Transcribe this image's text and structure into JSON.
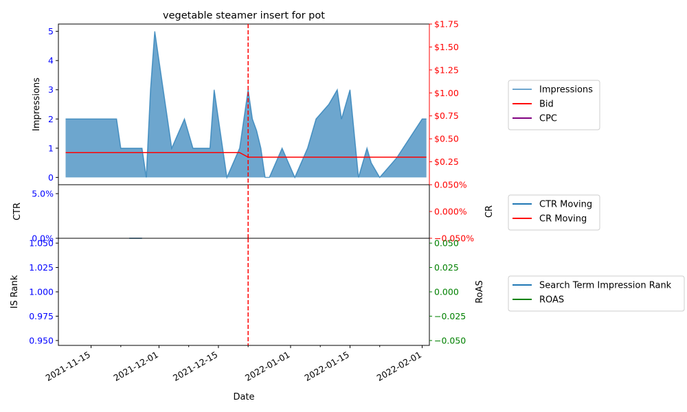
{
  "chart_data": {
    "type": "area",
    "title": "vegetable steamer insert for pot",
    "xlabel": "Date",
    "x_ticks": [
      "2021-11-15",
      "2021-12-01",
      "2021-12-15",
      "2022-01-01",
      "2022-01-15",
      "2022-02-01"
    ],
    "event_line": {
      "date": "2021-12-22",
      "color": "#ff0000",
      "style": "dashed"
    },
    "panels": [
      {
        "ylabel_left": "Impressions",
        "ylim_left": [
          -0.25,
          5.25
        ],
        "yticks_left": [
          "0",
          "1",
          "2",
          "3",
          "4",
          "5"
        ],
        "ylim_right": [
          0.0,
          1.75
        ],
        "yticks_right": [
          "$0.25",
          "$0.50",
          "$0.75",
          "$1.00",
          "$1.25",
          "$1.50",
          "$1.75"
        ],
        "right_axis_color": "#ff0000",
        "series": [
          {
            "name": "Impressions",
            "kind": "area",
            "axis": "left",
            "color": "#1f77b4",
            "points": [
              [
                "2021-11-09",
                2
              ],
              [
                "2021-11-15",
                2
              ],
              [
                "2021-11-21",
                2
              ],
              [
                "2021-11-22",
                1
              ],
              [
                "2021-11-24",
                1
              ],
              [
                "2021-11-27",
                1
              ],
              [
                "2021-11-28",
                0
              ],
              [
                "2021-11-29",
                3
              ],
              [
                "2021-11-30",
                5
              ],
              [
                "2021-12-03",
                2
              ],
              [
                "2021-12-04",
                1
              ],
              [
                "2021-12-07",
                2
              ],
              [
                "2021-12-09",
                1
              ],
              [
                "2021-12-11",
                1
              ],
              [
                "2021-12-13",
                1
              ],
              [
                "2021-12-14",
                3
              ],
              [
                "2021-12-16",
                1
              ],
              [
                "2021-12-17",
                0
              ],
              [
                "2021-12-20",
                1
              ],
              [
                "2021-12-22",
                3
              ],
              [
                "2021-12-23",
                2
              ],
              [
                "2021-12-24",
                1.6
              ],
              [
                "2021-12-25",
                1
              ],
              [
                "2021-12-26",
                0
              ],
              [
                "2021-12-27",
                0
              ],
              [
                "2021-12-30",
                1
              ],
              [
                "2022-01-02",
                0
              ],
              [
                "2022-01-05",
                1
              ],
              [
                "2022-01-07",
                2
              ],
              [
                "2022-01-10",
                2.5
              ],
              [
                "2022-01-12",
                3
              ],
              [
                "2022-01-13",
                2
              ],
              [
                "2022-01-15",
                3
              ],
              [
                "2022-01-17",
                0
              ],
              [
                "2022-01-19",
                1
              ],
              [
                "2022-01-20",
                0.5
              ],
              [
                "2022-01-22",
                0
              ],
              [
                "2022-01-26",
                0.67
              ],
              [
                "2022-02-01",
                2
              ],
              [
                "2022-02-02",
                2
              ]
            ]
          },
          {
            "name": "Bid",
            "kind": "line",
            "axis": "right",
            "color": "#ff0000",
            "points": [
              [
                "2021-11-09",
                0.35
              ],
              [
                "2021-12-20",
                0.35
              ],
              [
                "2021-12-22",
                0.3
              ],
              [
                "2022-02-02",
                0.3
              ]
            ]
          },
          {
            "name": "CPC",
            "kind": "line",
            "axis": "right",
            "color": "#800080",
            "points": []
          }
        ]
      },
      {
        "ylabel_left": "CTR",
        "ylabel_right": "CR",
        "ylim_left": [
          0.0,
          0.06
        ],
        "yticks_left": [
          "0.0%",
          "5.0%"
        ],
        "ylim_right": [
          -0.05,
          0.05
        ],
        "yticks_right": [
          "0.050%",
          "0.000%",
          "−0.050%"
        ],
        "right_axis_color": "#ff0000",
        "series": [
          {
            "name": "CTR Moving",
            "kind": "line",
            "axis": "left",
            "color": "#1f77b4",
            "points": [
              [
                "2021-11-24",
                0
              ],
              [
                "2021-11-27",
                0
              ]
            ]
          },
          {
            "name": "CR Moving",
            "kind": "line",
            "axis": "right",
            "color": "#ff0000",
            "points": []
          }
        ]
      },
      {
        "ylabel_left": "IS Rank",
        "ylabel_right": "RoAS",
        "ylim_left": [
          0.945,
          1.055
        ],
        "yticks_left": [
          "0.950",
          "0.975",
          "1.000",
          "1.025",
          "1.050"
        ],
        "ylim_right": [
          -0.055,
          0.055
        ],
        "yticks_right": [
          "0.050",
          "0.025",
          "0.000",
          "−0.025",
          "−0.050"
        ],
        "right_axis_color": "#008000",
        "series": [
          {
            "name": "Search Term Impression Rank",
            "kind": "line",
            "axis": "left",
            "color": "#1f77b4",
            "points": []
          },
          {
            "name": "ROAS",
            "kind": "line",
            "axis": "right",
            "color": "#008000",
            "points": []
          }
        ]
      }
    ]
  }
}
